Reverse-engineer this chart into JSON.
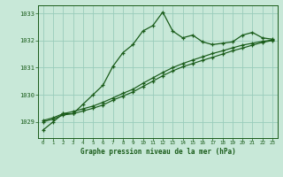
{
  "title": "Graphe pression niveau de la mer (hPa)",
  "bg_color": "#c8e8d8",
  "grid_color": "#99ccbb",
  "line_color": "#1a5c1a",
  "xlim": [
    -0.5,
    23.5
  ],
  "ylim": [
    1028.4,
    1033.3
  ],
  "yticks": [
    1029,
    1030,
    1031,
    1032,
    1033
  ],
  "xticks": [
    0,
    1,
    2,
    3,
    4,
    5,
    6,
    7,
    8,
    9,
    10,
    11,
    12,
    13,
    14,
    15,
    16,
    17,
    18,
    19,
    20,
    21,
    22,
    23
  ],
  "series1_x": [
    0,
    1,
    2,
    3,
    4,
    5,
    6,
    7,
    8,
    9,
    10,
    11,
    12,
    13,
    14,
    15,
    16,
    17,
    18,
    19,
    20,
    21,
    22,
    23
  ],
  "series1_y": [
    1028.7,
    1029.0,
    1029.3,
    1029.3,
    1029.65,
    1030.0,
    1030.35,
    1031.05,
    1031.55,
    1031.85,
    1032.35,
    1032.55,
    1033.05,
    1032.35,
    1032.1,
    1032.2,
    1031.95,
    1031.85,
    1031.9,
    1031.95,
    1032.2,
    1032.3,
    1032.1,
    1032.05
  ],
  "series2_x": [
    0,
    1,
    2,
    3,
    4,
    5,
    6,
    7,
    8,
    9,
    10,
    11,
    12,
    13,
    14,
    15,
    16,
    17,
    18,
    19,
    20,
    21,
    22,
    23
  ],
  "series2_y": [
    1029.0,
    1029.1,
    1029.25,
    1029.3,
    1029.4,
    1029.5,
    1029.62,
    1029.8,
    1029.95,
    1030.1,
    1030.3,
    1030.5,
    1030.7,
    1030.88,
    1031.03,
    1031.15,
    1031.27,
    1031.38,
    1031.5,
    1031.62,
    1031.72,
    1031.83,
    1031.93,
    1032.0
  ],
  "series3_x": [
    0,
    1,
    2,
    3,
    4,
    5,
    6,
    7,
    8,
    9,
    10,
    11,
    12,
    13,
    14,
    15,
    16,
    17,
    18,
    19,
    20,
    21,
    22,
    23
  ],
  "series3_y": [
    1029.05,
    1029.15,
    1029.3,
    1029.38,
    1029.48,
    1029.58,
    1029.72,
    1029.88,
    1030.05,
    1030.2,
    1030.42,
    1030.62,
    1030.82,
    1031.0,
    1031.15,
    1031.28,
    1031.4,
    1031.52,
    1031.62,
    1031.73,
    1031.83,
    1031.9,
    1031.97,
    1032.02
  ]
}
